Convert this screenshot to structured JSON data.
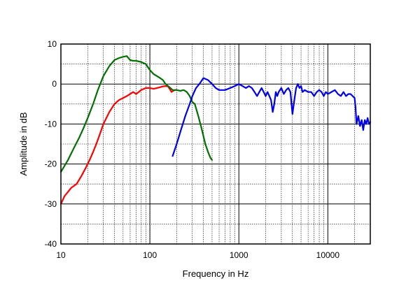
{
  "chart_data": {
    "type": "line",
    "xlabel": "Frequency in Hz",
    "ylabel": "Amplitude in dB",
    "x_scale": "log",
    "xlim": [
      10,
      30000
    ],
    "ylim": [
      -40,
      10
    ],
    "grid": true,
    "x_ticks": [
      {
        "value": 10,
        "label": "10"
      },
      {
        "value": 100,
        "label": "100"
      },
      {
        "value": 1000,
        "label": "1000"
      },
      {
        "value": 10000,
        "label": "10000"
      }
    ],
    "y_ticks": [
      {
        "value": 10,
        "label": "10"
      },
      {
        "value": 0,
        "label": "0"
      },
      {
        "value": -10,
        "label": "-10"
      },
      {
        "value": -20,
        "label": "-20"
      },
      {
        "value": -30,
        "label": "-30"
      },
      {
        "value": -40,
        "label": "-40"
      }
    ],
    "series": [
      {
        "color": "#ff0000",
        "x": [
          10,
          11,
          12,
          13,
          15,
          17,
          19,
          21,
          23,
          25,
          28,
          30,
          35,
          40,
          45,
          50,
          55,
          60,
          65,
          70,
          75,
          80,
          90,
          100,
          110,
          120,
          130,
          140,
          150,
          160,
          170,
          175,
          180,
          190,
          200
        ],
        "y": [
          -30,
          -28,
          -27,
          -26,
          -25,
          -23,
          -21,
          -19,
          -17,
          -15,
          -12,
          -10,
          -7,
          -5,
          -4,
          -3.5,
          -3,
          -2.5,
          -2,
          -2.5,
          -2,
          -1.5,
          -1,
          -1,
          -1.2,
          -1,
          -0.8,
          -0.6,
          -0.5,
          -0.6,
          -1.5,
          -2,
          -1.8,
          -1.5,
          -1.5
        ]
      },
      {
        "color": "#007000",
        "x": [
          10,
          12,
          14,
          16,
          18,
          20,
          23,
          26,
          30,
          35,
          40,
          45,
          50,
          55,
          60,
          65,
          70,
          80,
          90,
          100,
          110,
          120,
          130,
          140,
          150,
          160,
          170,
          180,
          200,
          220,
          240,
          260,
          280,
          300,
          320,
          350,
          380,
          400,
          420,
          450,
          480,
          500
        ],
        "y": [
          -22,
          -19,
          -16,
          -13.5,
          -11,
          -8.5,
          -5,
          -1.5,
          2,
          4.5,
          6,
          6.5,
          6.8,
          7,
          6,
          5.8,
          5.8,
          5.5,
          5,
          3.5,
          2.5,
          2,
          1.5,
          1,
          0,
          -0.5,
          -1,
          -1.5,
          -1.5,
          -1.7,
          -1.5,
          -2,
          -3,
          -4.5,
          -5,
          -8,
          -11,
          -13,
          -15,
          -17,
          -18.5,
          -19
        ]
      },
      {
        "color": "#0000ee",
        "x": [
          180,
          200,
          220,
          250,
          280,
          300,
          330,
          360,
          400,
          450,
          500,
          550,
          600,
          650,
          700,
          800,
          900,
          1000,
          1100,
          1200,
          1300,
          1400,
          1500,
          1600,
          1700,
          1800,
          1900,
          2000,
          2100,
          2200,
          2300,
          2400,
          2500,
          2600,
          2700,
          2800,
          3000,
          3200,
          3400,
          3600,
          3800,
          4000,
          4200,
          4400,
          4600,
          4800,
          5000,
          5200,
          5500,
          6000,
          6500,
          7000,
          7500,
          8000,
          8500,
          9000,
          9500,
          10000,
          11000,
          12000,
          13000,
          14000,
          15000,
          16000,
          17000,
          18000,
          19000,
          20000,
          20500,
          21000,
          22000,
          23000,
          24000,
          25000,
          26000,
          27000,
          28000,
          29000,
          30000
        ],
        "y": [
          -18,
          -15,
          -12,
          -8,
          -5,
          -3,
          -1,
          0,
          1.5,
          1,
          0,
          -1,
          -1.5,
          -1.5,
          -1.5,
          -1,
          -0.5,
          0,
          -0.5,
          -1,
          -0.5,
          -1,
          -2,
          -3,
          -2,
          -1,
          -2,
          -3,
          -2,
          -3,
          -4,
          -7,
          -5,
          -2,
          -3,
          -2,
          -1,
          -2.5,
          -1.5,
          -1,
          -2,
          -7.5,
          -4,
          -1,
          0,
          -1,
          -0.5,
          -2,
          -1.5,
          -2,
          -2,
          -3,
          -2,
          -1.5,
          -2,
          -3,
          -2,
          -2.5,
          -2,
          -1.5,
          -2.5,
          -3,
          -2,
          -3,
          -2.5,
          -2.5,
          -3,
          -3.5,
          -6,
          -10,
          -8,
          -10.5,
          -9,
          -11.5,
          -9,
          -10,
          -8.5,
          -10,
          -9.5
        ]
      }
    ]
  }
}
